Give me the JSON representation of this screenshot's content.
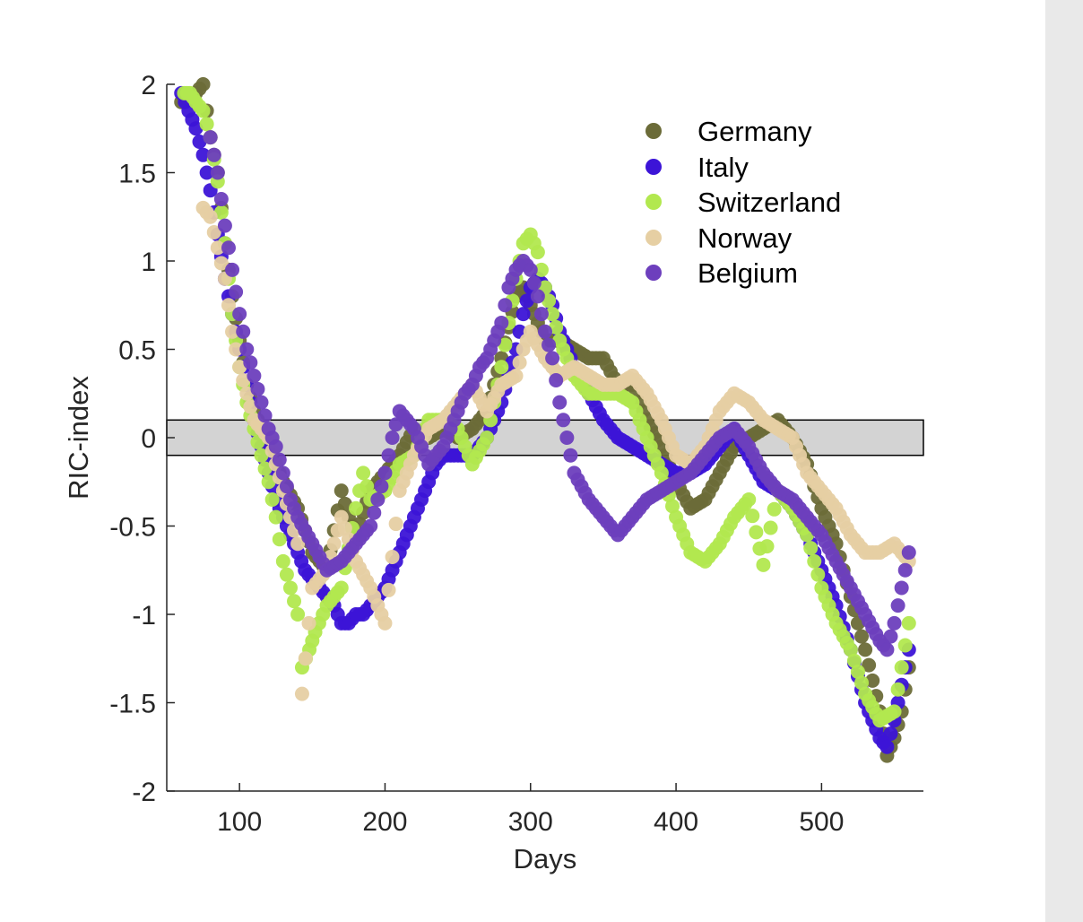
{
  "chart_data": {
    "type": "scatter",
    "title": "",
    "xlabel": "Days",
    "ylabel": "RIC-index",
    "xlim": [
      50,
      570
    ],
    "ylim": [
      -2,
      2
    ],
    "xticks": [
      100,
      200,
      300,
      400,
      500
    ],
    "yticks": [
      -2,
      -1.5,
      -1,
      -0.5,
      0,
      0.5,
      1,
      1.5,
      2
    ],
    "xtick_labels": [
      "100",
      "200",
      "300",
      "400",
      "500"
    ],
    "ytick_labels": [
      "-2",
      "-1.5",
      "-1",
      "-0.5",
      "0",
      "0.5",
      "1",
      "1.5",
      "2"
    ],
    "band": {
      "x": [
        50,
        570
      ],
      "y": [
        -0.1,
        0.1
      ],
      "color": "#d3d3d3"
    },
    "legend_position": "top-right",
    "series": [
      {
        "name": "Germany",
        "color": "#6b6b38",
        "x": [
          60,
          70,
          75,
          80,
          85,
          90,
          95,
          100,
          105,
          110,
          115,
          120,
          125,
          130,
          140,
          150,
          160,
          170,
          175,
          180,
          190,
          200,
          210,
          220,
          230,
          240,
          250,
          260,
          270,
          280,
          290,
          295,
          300,
          305,
          310,
          320,
          330,
          340,
          350,
          360,
          370,
          380,
          390,
          400,
          410,
          420,
          430,
          440,
          450,
          460,
          470,
          480,
          490,
          500,
          510,
          520,
          530,
          540,
          545,
          550,
          555,
          560
        ],
        "values": [
          1.9,
          1.95,
          2.0,
          1.7,
          1.5,
          1.1,
          0.8,
          0.55,
          0.3,
          0.15,
          0.05,
          -0.05,
          -0.15,
          -0.25,
          -0.4,
          -0.65,
          -0.75,
          -0.3,
          -0.45,
          -0.55,
          -0.3,
          -0.2,
          -0.1,
          0.05,
          0.0,
          0.05,
          0.0,
          0.05,
          0.15,
          0.45,
          0.8,
          0.85,
          0.75,
          0.65,
          0.55,
          0.55,
          0.5,
          0.45,
          0.45,
          0.3,
          0.3,
          0.1,
          -0.05,
          -0.25,
          -0.4,
          -0.35,
          -0.2,
          -0.05,
          0.0,
          0.05,
          0.1,
          0.0,
          -0.15,
          -0.4,
          -0.6,
          -0.9,
          -1.2,
          -1.55,
          -1.8,
          -1.7,
          -1.55,
          -1.3
        ]
      },
      {
        "name": "Italy",
        "color": "#3c14d7",
        "x": [
          60,
          65,
          70,
          75,
          80,
          85,
          90,
          95,
          100,
          105,
          110,
          115,
          120,
          125,
          130,
          135,
          140,
          145,
          150,
          155,
          160,
          165,
          170,
          175,
          180,
          185,
          190,
          195,
          200,
          205,
          210,
          215,
          220,
          225,
          230,
          235,
          240,
          250,
          260,
          270,
          280,
          285,
          290,
          295,
          300,
          305,
          310,
          315,
          320,
          330,
          340,
          350,
          360,
          370,
          380,
          390,
          400,
          410,
          420,
          430,
          440,
          450,
          460,
          470,
          480,
          490,
          500,
          510,
          520,
          530,
          540,
          545,
          550,
          555,
          560
        ],
        "values": [
          1.95,
          1.85,
          1.75,
          1.6,
          1.4,
          1.15,
          0.9,
          0.7,
          0.5,
          0.3,
          0.1,
          -0.05,
          -0.2,
          -0.35,
          -0.45,
          -0.55,
          -0.65,
          -0.75,
          -0.8,
          -0.85,
          -0.9,
          -0.95,
          -1.05,
          -1.05,
          -1.0,
          -1.0,
          -0.95,
          -0.9,
          -0.85,
          -0.75,
          -0.65,
          -0.55,
          -0.45,
          -0.35,
          -0.25,
          -0.15,
          -0.1,
          -0.1,
          -0.1,
          0.0,
          0.2,
          0.35,
          0.5,
          0.7,
          0.85,
          0.9,
          0.85,
          0.75,
          0.6,
          0.4,
          0.25,
          0.1,
          0.0,
          -0.05,
          -0.1,
          -0.15,
          -0.2,
          -0.2,
          -0.15,
          -0.05,
          0.05,
          -0.1,
          -0.25,
          -0.3,
          -0.4,
          -0.55,
          -0.75,
          -0.95,
          -1.2,
          -1.5,
          -1.7,
          -1.75,
          -1.6,
          -1.4,
          -1.2
        ]
      },
      {
        "name": "Switzerland",
        "color": "#b2e84f",
        "x": [
          62,
          66,
          70,
          75,
          80,
          85,
          90,
          95,
          100,
          105,
          110,
          115,
          120,
          125,
          130,
          135,
          140,
          143,
          148,
          152,
          160,
          170,
          180,
          185,
          190,
          200,
          210,
          220,
          230,
          240,
          250,
          260,
          270,
          280,
          290,
          295,
          300,
          305,
          310,
          320,
          330,
          340,
          350,
          360,
          370,
          380,
          390,
          400,
          410,
          420,
          430,
          440,
          450,
          460,
          470,
          480,
          490,
          500,
          510,
          520,
          530,
          540,
          550,
          560
        ],
        "values": [
          1.95,
          1.95,
          1.9,
          1.85,
          1.7,
          1.45,
          1.1,
          0.7,
          0.4,
          0.2,
          0.05,
          -0.1,
          -0.25,
          -0.45,
          -0.7,
          -0.85,
          -1.0,
          -1.3,
          -1.2,
          -1.1,
          -0.95,
          -0.85,
          -0.4,
          -0.2,
          -0.35,
          -0.3,
          -0.15,
          -0.1,
          0.1,
          0.1,
          0.05,
          -0.15,
          0.0,
          0.4,
          0.9,
          1.1,
          1.15,
          1.05,
          0.85,
          0.55,
          0.35,
          0.25,
          0.25,
          0.25,
          0.2,
          0.0,
          -0.2,
          -0.45,
          -0.65,
          -0.7,
          -0.6,
          -0.45,
          -0.35,
          -0.72,
          -0.3,
          -0.4,
          -0.55,
          -0.85,
          -1.05,
          -1.2,
          -1.45,
          -1.6,
          -1.55,
          -1.05
        ]
      },
      {
        "name": "Norway",
        "color": "#e6cfa3",
        "x": [
          75,
          80,
          90,
          95,
          100,
          105,
          110,
          120,
          130,
          140,
          143,
          150,
          160,
          170,
          180,
          190,
          200,
          210,
          220,
          230,
          240,
          250,
          260,
          270,
          280,
          290,
          295,
          300,
          310,
          320,
          330,
          340,
          350,
          360,
          370,
          380,
          390,
          400,
          410,
          420,
          430,
          440,
          450,
          460,
          470,
          480,
          490,
          500,
          510,
          520,
          530,
          540,
          550,
          555,
          560
        ],
        "values": [
          1.3,
          1.25,
          0.9,
          0.6,
          0.4,
          0.25,
          0.1,
          0.0,
          -0.3,
          -0.6,
          -1.45,
          -0.85,
          -0.75,
          -0.45,
          -0.7,
          -0.85,
          -1.05,
          -0.3,
          -0.1,
          0.05,
          0.1,
          0.2,
          0.3,
          0.15,
          0.3,
          0.35,
          0.5,
          0.6,
          0.45,
          0.35,
          0.4,
          0.35,
          0.3,
          0.3,
          0.35,
          0.25,
          0.1,
          -0.1,
          -0.15,
          -0.05,
          0.15,
          0.25,
          0.2,
          0.1,
          0.05,
          0.0,
          -0.2,
          -0.3,
          -0.4,
          -0.55,
          -0.65,
          -0.65,
          -0.6,
          -0.65,
          -0.7
        ]
      },
      {
        "name": "Belgium",
        "color": "#6d3fbd",
        "x": [
          80,
          85,
          90,
          95,
          100,
          105,
          110,
          115,
          120,
          125,
          130,
          135,
          140,
          150,
          160,
          170,
          180,
          190,
          200,
          205,
          210,
          215,
          220,
          225,
          230,
          240,
          250,
          255,
          260,
          265,
          270,
          280,
          285,
          290,
          295,
          300,
          305,
          310,
          315,
          320,
          330,
          340,
          350,
          360,
          370,
          380,
          390,
          400,
          410,
          420,
          430,
          440,
          450,
          460,
          470,
          480,
          490,
          500,
          510,
          520,
          530,
          540,
          545,
          550,
          555,
          560
        ],
        "values": [
          1.7,
          1.5,
          1.2,
          0.95,
          0.7,
          0.5,
          0.35,
          0.2,
          0.05,
          -0.05,
          -0.2,
          -0.35,
          -0.45,
          -0.6,
          -0.75,
          -0.7,
          -0.6,
          -0.5,
          -0.2,
          0.0,
          0.15,
          0.1,
          0.05,
          -0.05,
          -0.15,
          -0.05,
          0.15,
          0.25,
          0.3,
          0.4,
          0.45,
          0.65,
          0.85,
          0.95,
          1.0,
          0.95,
          0.8,
          0.6,
          0.45,
          0.2,
          -0.2,
          -0.35,
          -0.45,
          -0.55,
          -0.45,
          -0.35,
          -0.3,
          -0.25,
          -0.2,
          -0.1,
          0.0,
          0.05,
          -0.05,
          -0.2,
          -0.3,
          -0.35,
          -0.45,
          -0.55,
          -0.7,
          -0.85,
          -1.0,
          -1.15,
          -1.2,
          -1.05,
          -0.85,
          -0.65
        ]
      }
    ]
  }
}
